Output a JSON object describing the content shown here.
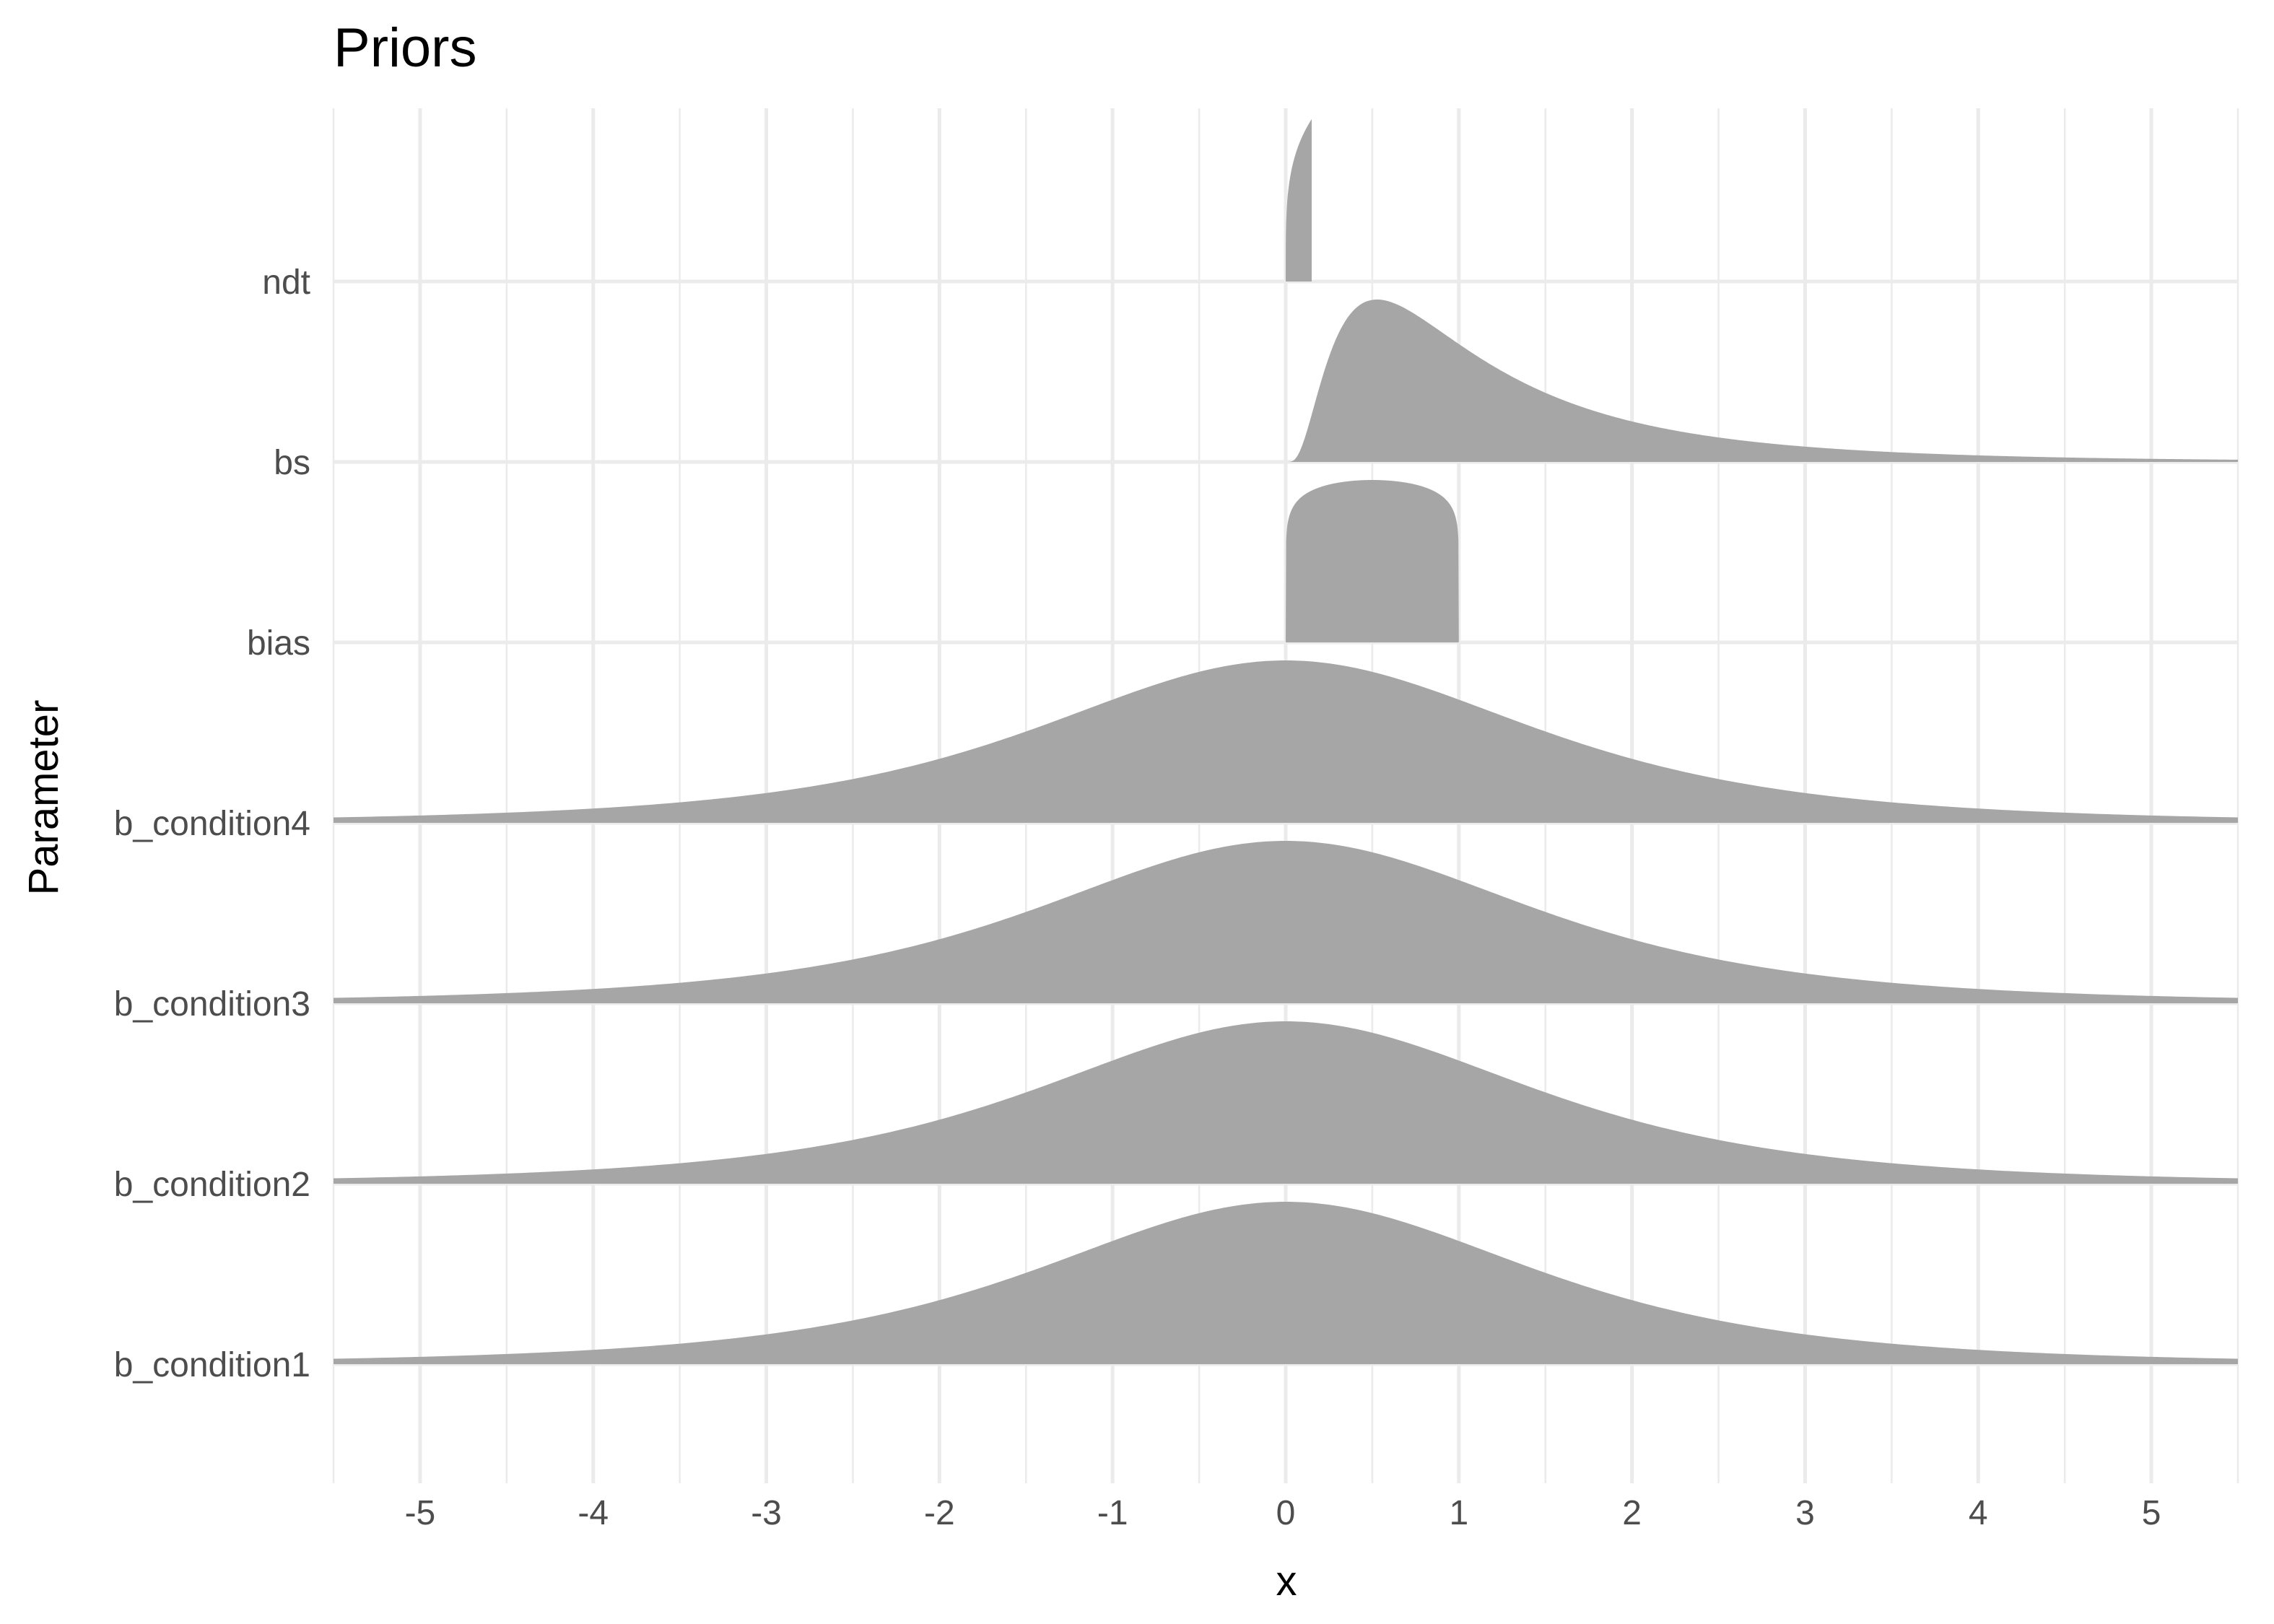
{
  "chart_data": {
    "type": "ridgeline",
    "title": "Priors",
    "xlabel": "x",
    "ylabel": "Parameter",
    "xlim": [
      -5.5,
      5.5
    ],
    "x_ticks": [
      -5,
      -4,
      -3,
      -2,
      -1,
      0,
      1,
      2,
      3,
      4,
      5
    ],
    "grid": true,
    "fill_color": "#a6a6a6",
    "categories": [
      "b_condition1",
      "b_condition2",
      "b_condition3",
      "b_condition4",
      "bias",
      "bs",
      "ndt"
    ],
    "series": [
      {
        "name": "b_condition1",
        "distribution": "student_t",
        "df": 3,
        "location": 0,
        "scale": 1.5
      },
      {
        "name": "b_condition2",
        "distribution": "student_t",
        "df": 3,
        "location": 0,
        "scale": 1.5
      },
      {
        "name": "b_condition3",
        "distribution": "student_t",
        "df": 3,
        "location": 0,
        "scale": 1.5
      },
      {
        "name": "b_condition4",
        "distribution": "student_t",
        "df": 3,
        "location": 0,
        "scale": 1.5
      },
      {
        "name": "bias",
        "distribution": "beta",
        "alpha": 1.1,
        "beta": 1.1,
        "range": [
          0,
          1
        ]
      },
      {
        "name": "bs",
        "distribution": "lognormal",
        "meanlog": 0,
        "sdlog": 0.8
      },
      {
        "name": "ndt",
        "distribution": "power",
        "range": [
          0,
          0.15
        ],
        "exponent": 4
      }
    ]
  }
}
